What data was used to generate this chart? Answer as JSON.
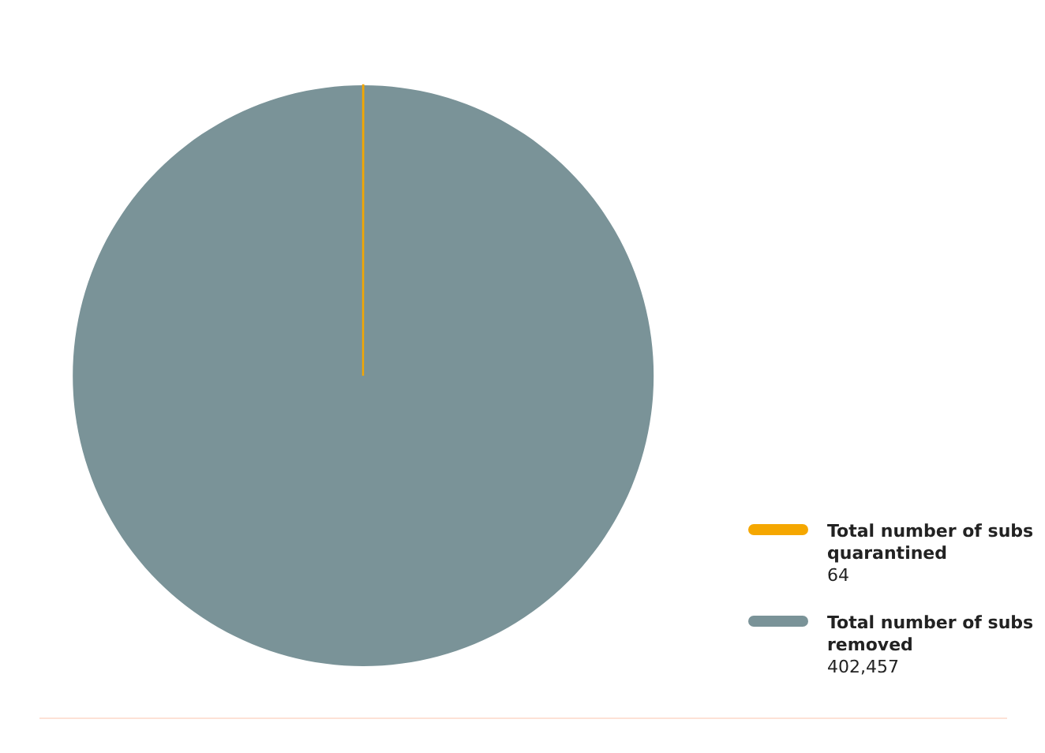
{
  "chart_data": {
    "type": "pie",
    "categories": [
      "Total number of subs quarantined",
      "Total number of subs removed"
    ],
    "values": [
      64,
      402457
    ],
    "colors": [
      "#f5a700",
      "#7a9398"
    ],
    "value_labels": [
      "64",
      "402,457"
    ],
    "legend": "right"
  }
}
